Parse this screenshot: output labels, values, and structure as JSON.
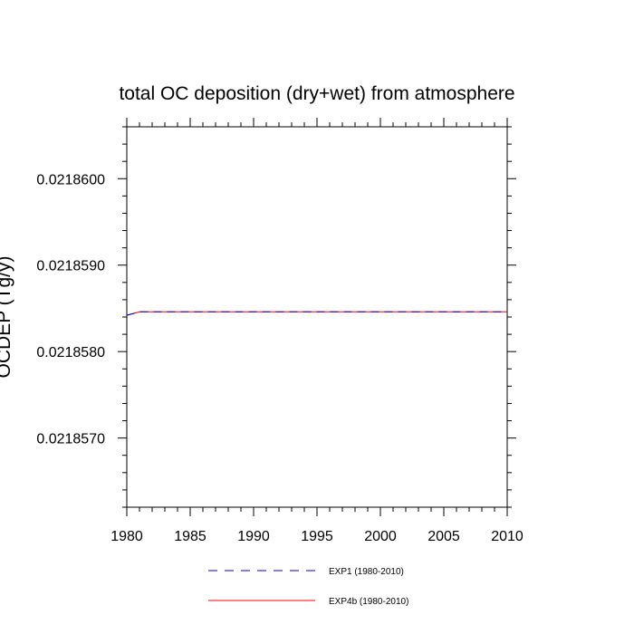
{
  "chart_data": {
    "type": "line",
    "title": "total OC deposition (dry+wet) from atmosphere",
    "xlabel": "",
    "ylabel": "OCDEP (Tg/y)",
    "xlim": [
      1980,
      2010
    ],
    "ylim": [
      0.0218562,
      0.0218606
    ],
    "xticks": [
      1980,
      1985,
      1990,
      1995,
      2000,
      2005,
      2010
    ],
    "xtick_labels": [
      "1980",
      "1985",
      "1990",
      "1995",
      "2000",
      "2005",
      "2010"
    ],
    "yticks": [
      0.021857,
      0.021858,
      0.021859,
      0.02186
    ],
    "ytick_labels": [
      "0.0218570",
      "0.0218580",
      "0.0218590",
      "0.0218600"
    ],
    "grid": false,
    "legend_position": "bottom",
    "series": [
      {
        "name": "EXP1 (1980-2010)",
        "color": "#0000cc",
        "style": "dashed",
        "x": [
          1980,
          1981,
          1982,
          1985,
          1990,
          1995,
          2000,
          2005,
          2010
        ],
        "y": [
          0.02185842,
          0.02185846,
          0.02185846,
          0.02185846,
          0.02185846,
          0.02185846,
          0.02185846,
          0.02185846,
          0.02185846
        ]
      },
      {
        "name": "EXP4b (1980-2010)",
        "color": "#ff0000",
        "style": "solid",
        "x": [
          1980,
          1981,
          1982,
          1985,
          1990,
          1995,
          2000,
          2005,
          2010
        ],
        "y": [
          0.02185842,
          0.02185846,
          0.02185846,
          0.02185846,
          0.02185846,
          0.02185846,
          0.02185846,
          0.02185846,
          0.02185846
        ]
      }
    ]
  }
}
